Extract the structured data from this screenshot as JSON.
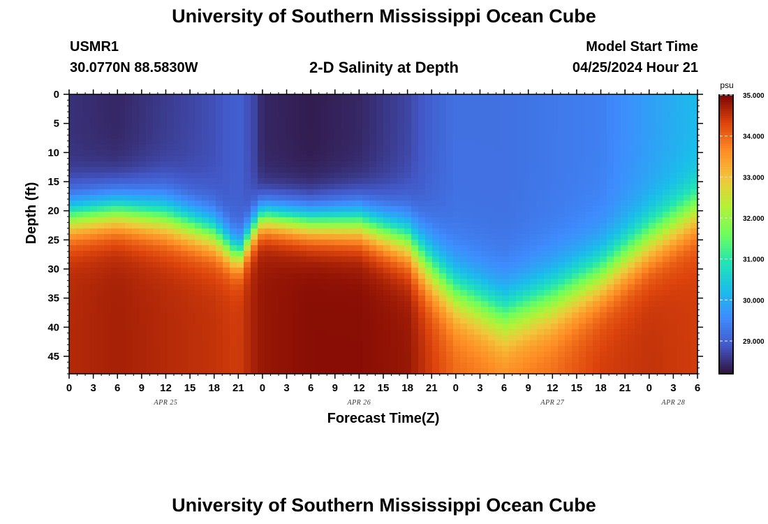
{
  "header": {
    "title_top": "University of Southern Mississippi Ocean Cube",
    "station_id": "USMR1",
    "coords": "30.0770N  88.5830W",
    "plot_title": "2-D Salinity at Depth",
    "model_label": "Model Start Time",
    "model_time": "04/25/2024 Hour 21",
    "title_bottom": "University of Southern Mississippi Ocean Cube"
  },
  "chart_data": {
    "type": "heatmap",
    "title": "2-D Salinity at Depth",
    "xlabel": "Forecast Time(Z)",
    "ylabel": "Depth (ft)",
    "x_ticks": [
      "0",
      "3",
      "6",
      "9",
      "12",
      "15",
      "18",
      "21",
      "0",
      "3",
      "6",
      "9",
      "12",
      "15",
      "18",
      "21",
      "0",
      "3",
      "6",
      "9",
      "12",
      "15",
      "18",
      "21",
      "0",
      "3",
      "6"
    ],
    "x_range_hours": [
      0,
      78
    ],
    "day_labels": [
      {
        "label": "APR 25",
        "hour": 12
      },
      {
        "label": "APR 26",
        "hour": 36
      },
      {
        "label": "APR 27",
        "hour": 60
      },
      {
        "label": "APR 28",
        "hour": 75
      }
    ],
    "y_ticks": [
      0,
      5,
      10,
      15,
      20,
      25,
      30,
      35,
      40,
      45
    ],
    "ylim": [
      0,
      48
    ],
    "y_inverted": true,
    "colorbar": {
      "unit": "psu",
      "min": 28.2,
      "max": 35.0,
      "ticks": [
        "35.000",
        "34.000",
        "33.000",
        "32.000",
        "31.000",
        "30.000",
        "29.000"
      ],
      "colormap": "turbo"
    },
    "profile_times_hours": [
      0,
      6,
      12,
      18,
      21,
      23,
      24,
      30,
      36,
      42,
      45,
      48,
      54,
      60,
      66,
      72,
      78
    ],
    "profiles": [
      {
        "hour": 0,
        "surface": 28.5,
        "bottom": 34.6,
        "mid_depth": 21,
        "halfwidth": 5.0
      },
      {
        "hour": 6,
        "surface": 28.4,
        "bottom": 34.7,
        "mid_depth": 20,
        "halfwidth": 5.0
      },
      {
        "hour": 12,
        "surface": 28.6,
        "bottom": 34.6,
        "mid_depth": 21,
        "halfwidth": 5.5
      },
      {
        "hour": 18,
        "surface": 28.8,
        "bottom": 34.5,
        "mid_depth": 24,
        "halfwidth": 5.0
      },
      {
        "hour": 21,
        "surface": 29.0,
        "bottom": 34.4,
        "mid_depth": 28,
        "halfwidth": 4.0
      },
      {
        "hour": 23,
        "surface": 28.7,
        "bottom": 34.7,
        "mid_depth": 23,
        "halfwidth": 4.0
      },
      {
        "hour": 24,
        "surface": 28.4,
        "bottom": 34.8,
        "mid_depth": 21,
        "halfwidth": 4.0
      },
      {
        "hour": 30,
        "surface": 28.3,
        "bottom": 34.9,
        "mid_depth": 22,
        "halfwidth": 4.5
      },
      {
        "hour": 36,
        "surface": 28.4,
        "bottom": 34.9,
        "mid_depth": 22,
        "halfwidth": 5.0
      },
      {
        "hour": 42,
        "surface": 28.7,
        "bottom": 34.8,
        "mid_depth": 25,
        "halfwidth": 6.0
      },
      {
        "hour": 45,
        "surface": 29.0,
        "bottom": 34.4,
        "mid_depth": 30,
        "halfwidth": 7.0
      },
      {
        "hour": 48,
        "surface": 29.2,
        "bottom": 34.0,
        "mid_depth": 34,
        "halfwidth": 7.0
      },
      {
        "hour": 54,
        "surface": 29.2,
        "bottom": 33.8,
        "mid_depth": 38,
        "halfwidth": 7.5
      },
      {
        "hour": 60,
        "surface": 29.3,
        "bottom": 34.0,
        "mid_depth": 35,
        "halfwidth": 7.5
      },
      {
        "hour": 66,
        "surface": 29.4,
        "bottom": 34.4,
        "mid_depth": 31,
        "halfwidth": 7.0
      },
      {
        "hour": 72,
        "surface": 29.8,
        "bottom": 34.5,
        "mid_depth": 25,
        "halfwidth": 6.5
      },
      {
        "hour": 78,
        "surface": 30.2,
        "bottom": 34.4,
        "mid_depth": 20,
        "halfwidth": 6.0
      }
    ]
  }
}
